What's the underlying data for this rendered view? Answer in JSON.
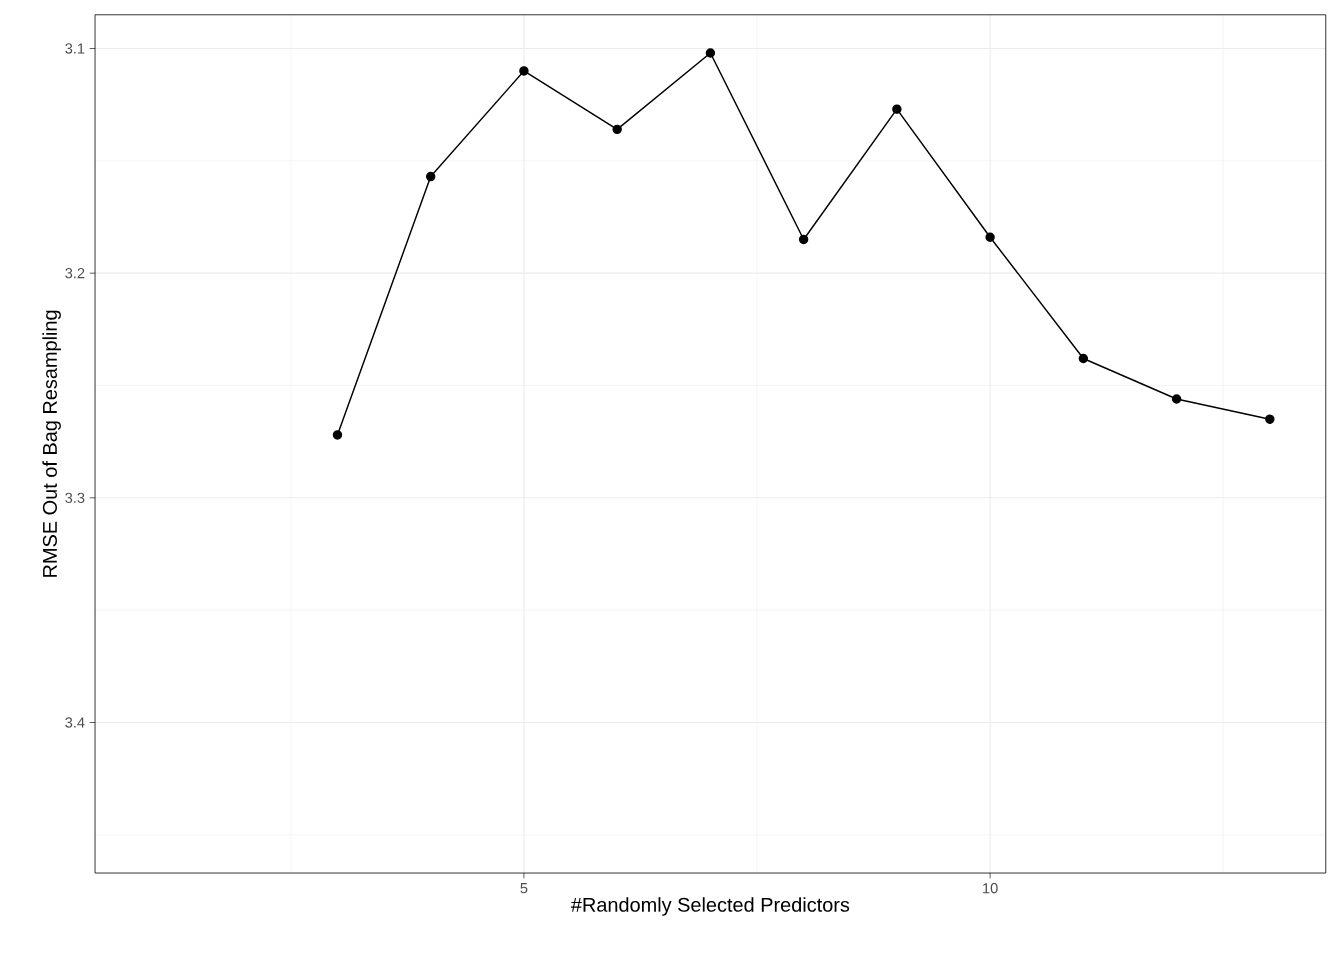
{
  "chart_data": {
    "type": "line",
    "xlabel": "#Randomly Selected Predictors",
    "ylabel": "RMSE Out of Bag Resampling",
    "x": [
      3,
      4,
      5,
      6,
      7,
      8,
      9,
      10,
      11,
      12,
      13
    ],
    "values": [
      3.272,
      3.157,
      3.11,
      3.136,
      3.102,
      3.185,
      3.127,
      3.184,
      3.238,
      3.256,
      3.265
    ],
    "color": "#000000",
    "marker": "circle",
    "line_style": "solid",
    "grid": true,
    "xlim": [
      0.4,
      13.6
    ],
    "xticks": [
      5,
      10
    ],
    "ylim": [
      3.467,
      3.085
    ],
    "yticks": [
      3.1,
      3.2,
      3.3,
      3.4
    ]
  }
}
